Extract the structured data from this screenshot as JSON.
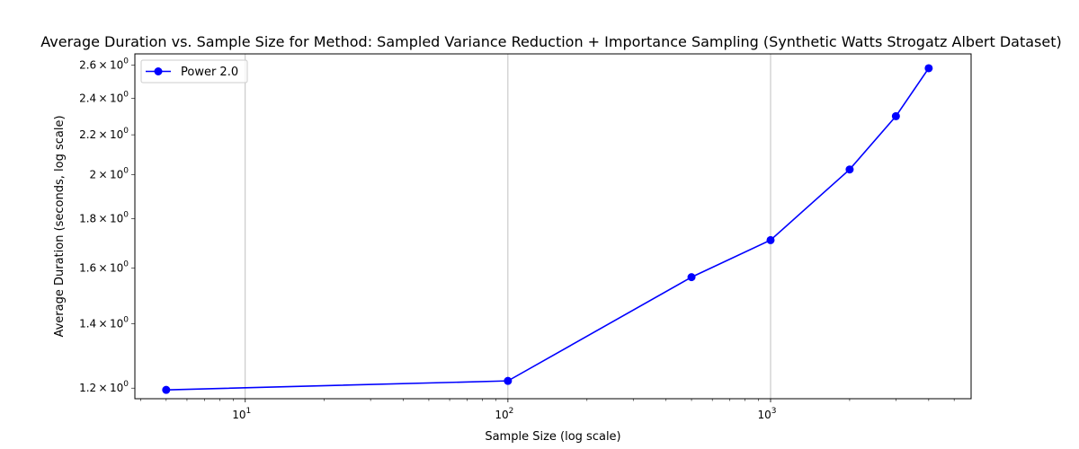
{
  "chart_data": {
    "type": "line",
    "title": "Average Duration vs. Sample Size for Method: Sampled Variance Reduction + Importance Sampling (Synthetic Watts Strogatz Albert Dataset)",
    "xlabel": "Sample Size (log scale)",
    "ylabel": "Average Duration (seconds, log scale)",
    "x_scale": "log",
    "y_scale": "log",
    "xlim": [
      3.8,
      5800
    ],
    "ylim": [
      1.17,
      2.67
    ],
    "x_ticks": [
      {
        "value": 10,
        "base": "10",
        "exp": "1"
      },
      {
        "value": 100,
        "base": "10",
        "exp": "2"
      },
      {
        "value": 1000,
        "base": "10",
        "exp": "3"
      }
    ],
    "y_ticks": [
      {
        "value": 1.2,
        "mant": "1.2",
        "base": "10",
        "exp": "0"
      },
      {
        "value": 1.4,
        "mant": "1.4",
        "base": "10",
        "exp": "0"
      },
      {
        "value": 1.6,
        "mant": "1.6",
        "base": "10",
        "exp": "0"
      },
      {
        "value": 1.8,
        "mant": "1.8",
        "base": "10",
        "exp": "0"
      },
      {
        "value": 2.0,
        "mant": "2",
        "base": "10",
        "exp": "0"
      },
      {
        "value": 2.2,
        "mant": "2.2",
        "base": "10",
        "exp": "0"
      },
      {
        "value": 2.4,
        "mant": "2.4",
        "base": "10",
        "exp": "0"
      },
      {
        "value": 2.6,
        "mant": "2.6",
        "base": "10",
        "exp": "0"
      }
    ],
    "grid": "x-major",
    "legend_position": "upper-left",
    "series": [
      {
        "name": "Power 2.0",
        "color": "#0000ff",
        "marker": "circle",
        "x": [
          5,
          100,
          500,
          1000,
          2000,
          3000,
          4000
        ],
        "y": [
          1.195,
          1.221,
          1.565,
          1.71,
          2.025,
          2.3,
          2.58
        ]
      }
    ]
  }
}
